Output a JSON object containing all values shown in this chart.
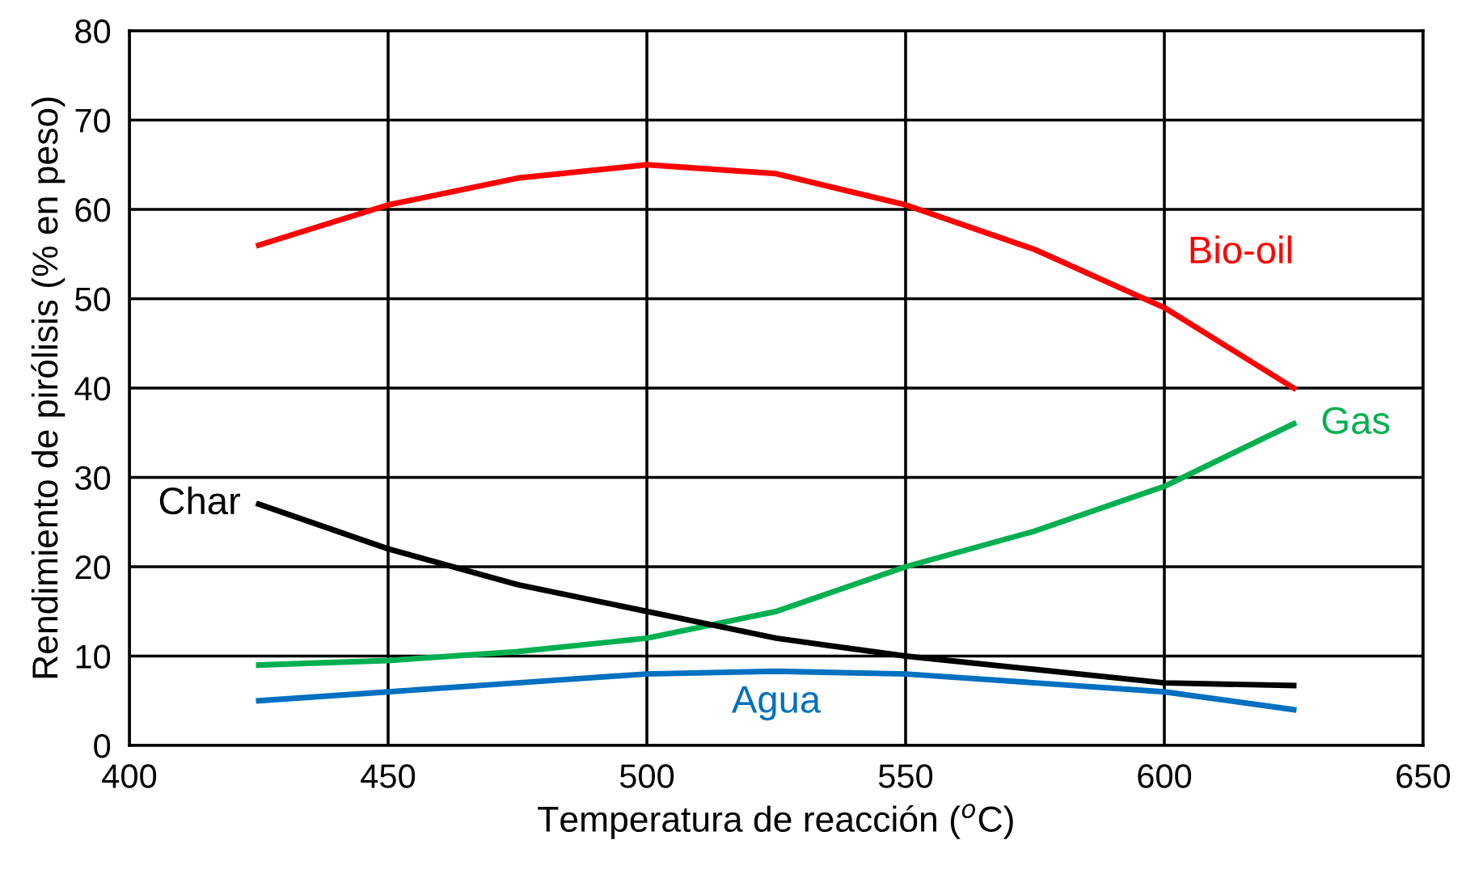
{
  "chart_data": {
    "type": "line",
    "xlabel": "Temperatura de reacción ($^{o}$C)",
    "ylabel": "Rendimiento de pirólisis (% en peso)",
    "x": [
      425,
      450,
      475,
      500,
      525,
      550,
      575,
      600,
      625
    ],
    "series": [
      {
        "name": "Bio-oil",
        "color": "#ff0000",
        "values": [
          56,
          60.5,
          63.5,
          65,
          64,
          60.5,
          55.5,
          49,
          40
        ]
      },
      {
        "name": "Gas",
        "color": "#00b050",
        "values": [
          9,
          9.5,
          10.5,
          12,
          15,
          20,
          24,
          29,
          36
        ]
      },
      {
        "name": "Char",
        "color": "#000000",
        "values": [
          27,
          22,
          18,
          15,
          12,
          10,
          8.5,
          7,
          6.7
        ]
      },
      {
        "name": "Agua",
        "color": "#0070c0",
        "values": [
          5,
          6,
          7,
          8,
          8.3,
          8,
          7,
          6,
          4
        ]
      }
    ],
    "xlim": [
      400,
      650
    ],
    "xticks": [
      400,
      450,
      500,
      550,
      600,
      650
    ],
    "ylim": [
      0,
      80
    ],
    "yticks": [
      0,
      10,
      20,
      30,
      40,
      50,
      60,
      70,
      80
    ],
    "grid": true,
    "legend": false,
    "marker": "none",
    "line_style": "solid"
  }
}
